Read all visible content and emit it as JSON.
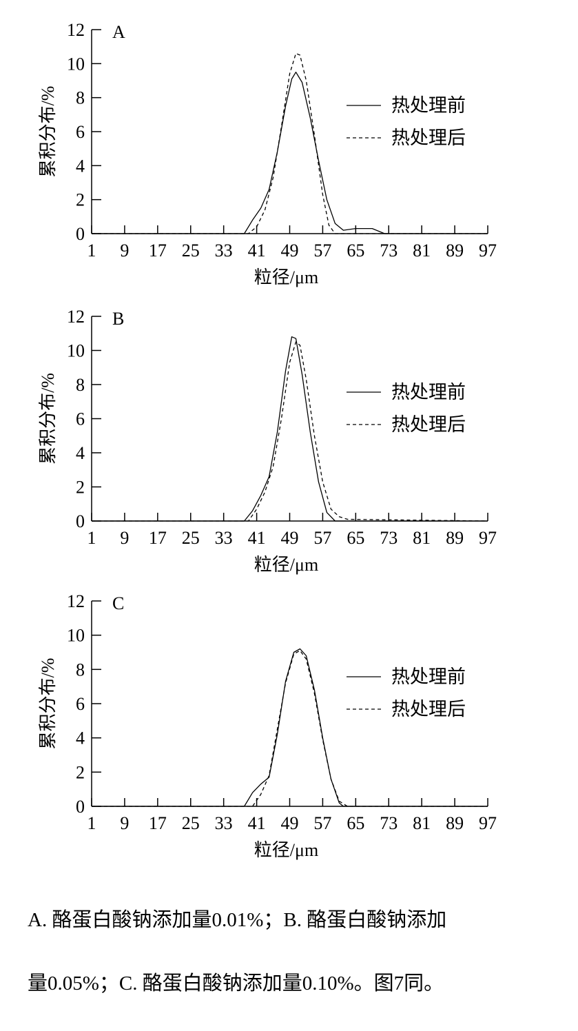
{
  "chart_data": [
    {
      "type": "line",
      "panel_label": "A",
      "xlabel": "粒径/μm",
      "ylabel": "累积分布/%",
      "xlim": [
        1,
        97
      ],
      "ylim": [
        0,
        12
      ],
      "xticks": [
        1,
        9,
        17,
        25,
        33,
        41,
        49,
        57,
        65,
        73,
        81,
        89,
        97
      ],
      "yticks": [
        0,
        2,
        4,
        6,
        8,
        10,
        12
      ],
      "legend_position": "right",
      "series": [
        {
          "name": "热处理前",
          "style": "solid",
          "x": [
            1,
            38,
            40,
            42,
            44,
            46,
            48,
            49.5,
            50.5,
            52,
            54,
            56,
            58,
            60,
            62,
            65,
            69,
            72,
            97
          ],
          "y": [
            0,
            0,
            0.8,
            1.5,
            2.6,
            4.8,
            7.5,
            9.1,
            9.5,
            8.9,
            6.8,
            4.3,
            2.0,
            0.6,
            0.2,
            0.3,
            0.3,
            0,
            0
          ]
        },
        {
          "name": "热处理后",
          "style": "dashed",
          "x": [
            1,
            39,
            41,
            43,
            45,
            47,
            49,
            50.5,
            51.5,
            53,
            55,
            57,
            58.5,
            60,
            97
          ],
          "y": [
            0,
            0,
            0.4,
            1.4,
            3.3,
            6.3,
            9.4,
            10.6,
            10.5,
            9.0,
            5.8,
            2.3,
            0.5,
            0,
            0
          ]
        }
      ]
    },
    {
      "type": "line",
      "panel_label": "B",
      "xlabel": "粒径/μm",
      "ylabel": "累积分布/%",
      "xlim": [
        1,
        97
      ],
      "ylim": [
        0,
        12
      ],
      "xticks": [
        1,
        9,
        17,
        25,
        33,
        41,
        49,
        57,
        65,
        73,
        81,
        89,
        97
      ],
      "yticks": [
        0,
        2,
        4,
        6,
        8,
        10,
        12
      ],
      "legend_position": "right",
      "series": [
        {
          "name": "热处理前",
          "style": "solid",
          "x": [
            1,
            38,
            40,
            42,
            44,
            46,
            48,
            49.5,
            50.5,
            52,
            54,
            56,
            58,
            60,
            97
          ],
          "y": [
            0,
            0,
            0.6,
            1.5,
            2.6,
            5.2,
            8.8,
            10.8,
            10.7,
            8.6,
            5.2,
            2.3,
            0.5,
            0,
            0
          ]
        },
        {
          "name": "热处理后",
          "style": "dashed",
          "x": [
            1,
            39,
            41,
            43,
            45,
            47,
            49,
            50.5,
            51.5,
            53,
            55,
            57,
            59,
            61,
            63,
            97
          ],
          "y": [
            0,
            0,
            0.7,
            1.7,
            3.2,
            6.0,
            9.3,
            10.5,
            10.3,
            8.3,
            5.0,
            2.3,
            0.7,
            0.25,
            0.1,
            0
          ]
        }
      ]
    },
    {
      "type": "line",
      "panel_label": "C",
      "xlabel": "粒径/μm",
      "ylabel": "累积分布/%",
      "xlim": [
        1,
        97
      ],
      "ylim": [
        0,
        12
      ],
      "xticks": [
        1,
        9,
        17,
        25,
        33,
        41,
        49,
        57,
        65,
        73,
        81,
        89,
        97
      ],
      "yticks": [
        0,
        2,
        4,
        6,
        8,
        10,
        12
      ],
      "legend_position": "right",
      "series": [
        {
          "name": "热处理前",
          "style": "solid",
          "x": [
            1,
            38,
            40,
            42,
            44,
            46,
            48,
            50,
            51.5,
            53,
            55,
            57,
            59,
            61,
            62,
            97
          ],
          "y": [
            0,
            0,
            0.8,
            1.3,
            1.7,
            4.2,
            7.3,
            9.0,
            9.2,
            8.8,
            6.8,
            4.0,
            1.6,
            0.2,
            0,
            0
          ]
        },
        {
          "name": "热处理后",
          "style": "dashed",
          "x": [
            1,
            40,
            42,
            44,
            46,
            48,
            50,
            51.5,
            53,
            55,
            57,
            59,
            61,
            63,
            97
          ],
          "y": [
            0,
            0,
            0.7,
            1.8,
            4.5,
            7.2,
            8.9,
            9.1,
            8.6,
            6.6,
            3.9,
            1.6,
            0.3,
            0,
            0
          ]
        }
      ]
    }
  ],
  "caption": {
    "line1": "A. 酪蛋白酸钠添加量0.01%；B. 酪蛋白酸钠添加",
    "line2": "量0.05%；C. 酪蛋白酸钠添加量0.10%。图7同。"
  }
}
